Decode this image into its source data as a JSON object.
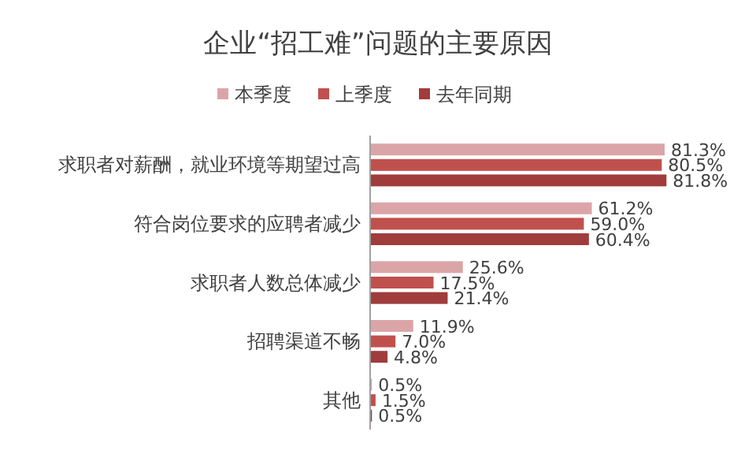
{
  "chart_data": {
    "type": "bar",
    "orientation": "horizontal",
    "title": "企业“招工难”问题的主要原因",
    "categories": [
      "求职者对薪酬，就业环境等期望过高",
      "符合岗位要求的应聘者减少",
      "求职者人数总体减少",
      "招聘渠道不畅",
      "其他"
    ],
    "series": [
      {
        "name": "本季度",
        "color": "#dba5a8",
        "values": [
          81.3,
          61.2,
          25.6,
          11.9,
          0.5
        ],
        "value_labels": [
          "81.3%",
          "61.2%",
          "25.6%",
          "11.9%",
          "0.5%"
        ]
      },
      {
        "name": "上季度",
        "color": "#c0504d",
        "values": [
          80.5,
          59.0,
          17.5,
          7.0,
          1.5
        ],
        "value_labels": [
          "80.5%",
          "59.0%",
          "17.5%",
          "7.0%",
          "1.5%"
        ]
      },
      {
        "name": "去年同期",
        "color": "#a03c3c",
        "values": [
          81.8,
          60.4,
          21.4,
          4.8,
          0.5
        ],
        "value_labels": [
          "81.8%",
          "60.4%",
          "21.4%",
          "4.8%",
          "0.5%"
        ]
      }
    ],
    "legend": "top"
  }
}
